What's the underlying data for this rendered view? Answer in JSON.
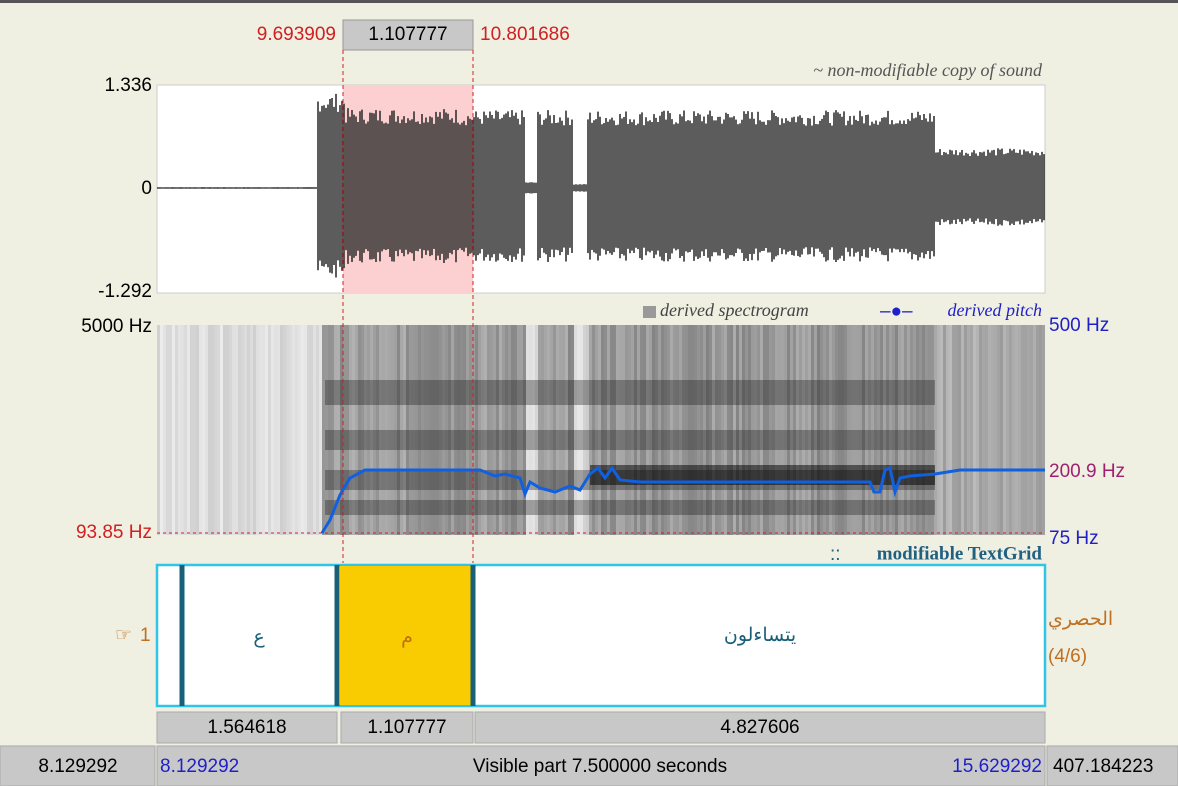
{
  "selection": {
    "start": "9.693909",
    "duration": "1.107777",
    "end": "10.801686"
  },
  "sound": {
    "label": "~ non-modifiable copy of sound",
    "max": "1.336",
    "zero": "0",
    "min": "-1.292"
  },
  "spectrogram": {
    "label": "derived spectrogram",
    "pitch_label": "derived pitch",
    "freq_max": "5000 Hz",
    "freq_cursor": "93.85 Hz",
    "pitch_max": "500 Hz",
    "pitch_value": "200.9 Hz",
    "pitch_min": "75 Hz"
  },
  "textgrid": {
    "label": "modifiable TextGrid",
    "tier_number": "1",
    "tier_name": "الحصري",
    "tier_count": "(4/6)",
    "intervals": [
      {
        "text": "ع",
        "duration": "1.564618"
      },
      {
        "text": "م",
        "duration": "1.107777"
      },
      {
        "text": "يتساءلون",
        "duration": "4.827606"
      }
    ]
  },
  "footer": {
    "left_total": "8.129292",
    "visible_start": "8.129292",
    "visible": "Visible part 7.500000 seconds",
    "visible_end": "15.629292",
    "right_total": "407.184223"
  }
}
